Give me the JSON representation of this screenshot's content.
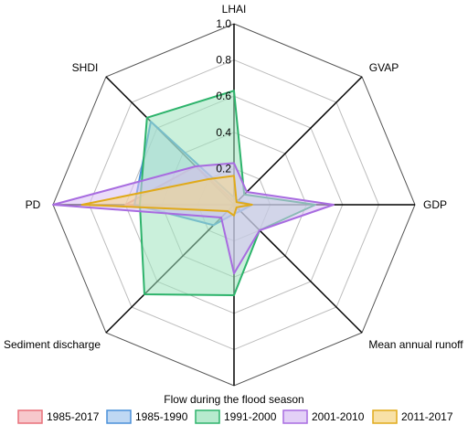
{
  "chart_data": {
    "type": "radar",
    "axes": [
      "LHAI",
      "GVAP",
      "GDP",
      "Mean annual runoff",
      "Flow during the flood season",
      "Sediment discharge",
      "PD",
      "SHDI"
    ],
    "rlim": [
      0,
      1.0
    ],
    "ticks": [
      "0.2",
      "0.4",
      "0.6",
      "0.8",
      "1.0"
    ],
    "tick_values": [
      0.2,
      0.4,
      0.6,
      0.8,
      1.0
    ],
    "grid": true,
    "legend_position": "bottom",
    "series": [
      {
        "name": "1985-2017",
        "color": "#e8707a",
        "fill": "#f4b6bb",
        "values": [
          0.02,
          0.02,
          0.05,
          0.03,
          0.03,
          0.05,
          0.6,
          0.3
        ]
      },
      {
        "name": "1985-1990",
        "color": "#4a90d9",
        "fill": "#a9cbef",
        "values": [
          0.04,
          0.03,
          0.1,
          0.05,
          0.05,
          0.16,
          0.55,
          0.65
        ]
      },
      {
        "name": "1991-2000",
        "color": "#2db36b",
        "fill": "#9fe3bd",
        "values": [
          0.63,
          0.08,
          0.45,
          0.2,
          0.5,
          0.7,
          0.52,
          0.68
        ]
      },
      {
        "name": "2001-2010",
        "color": "#a86ce0",
        "fill": "#d9c0f4",
        "values": [
          0.23,
          0.1,
          0.55,
          0.2,
          0.38,
          0.1,
          1.0,
          0.3
        ]
      },
      {
        "name": "2011-2017",
        "color": "#e0aa1a",
        "fill": "#f5d78a",
        "values": [
          0.16,
          0.02,
          0.1,
          0.02,
          0.06,
          0.05,
          0.84,
          0.2
        ]
      }
    ]
  }
}
